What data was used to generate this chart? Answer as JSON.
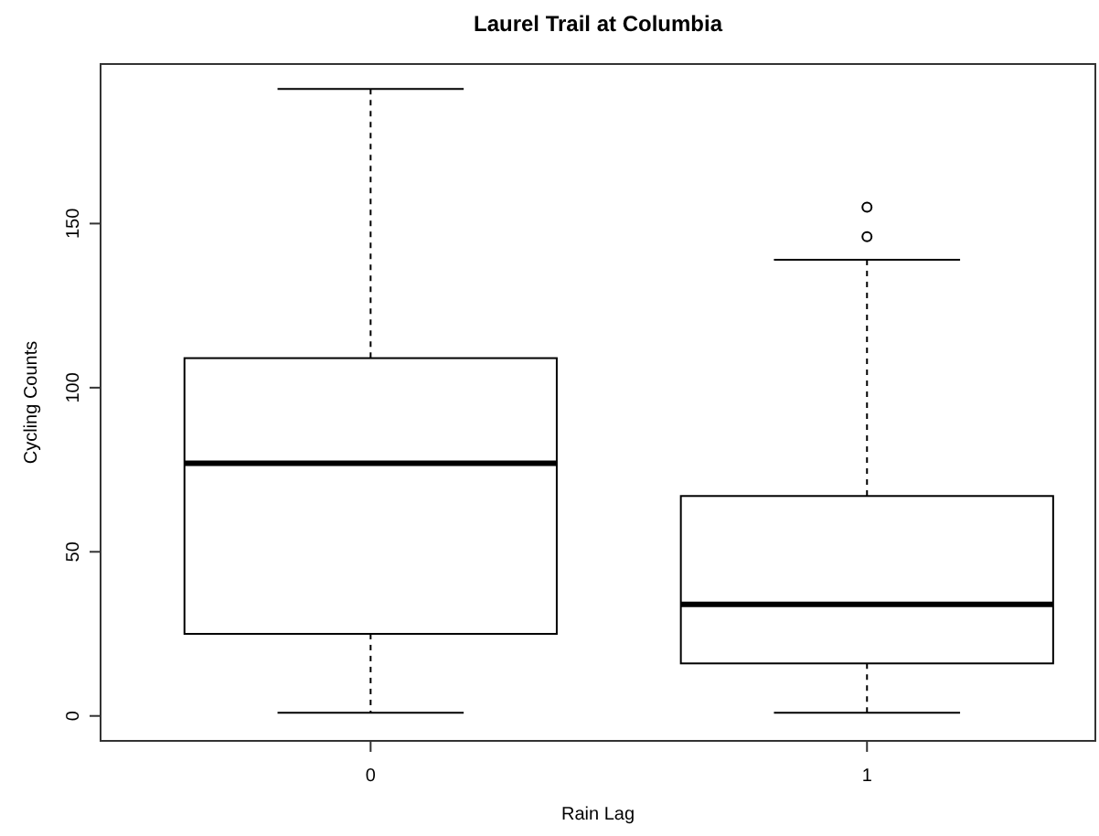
{
  "chart_data": {
    "type": "box",
    "title": "Laurel Trail at Columbia",
    "xlabel": "Rain Lag",
    "ylabel": "Cycling Counts",
    "categories": [
      "0",
      "1"
    ],
    "boxes": [
      {
        "low": 1,
        "q1": 25,
        "median": 77,
        "q3": 109,
        "high": 191
      },
      {
        "low": 1,
        "q1": 16,
        "median": 34,
        "q3": 67,
        "high": 139,
        "outliers": [
          146,
          155
        ]
      }
    ],
    "ylim": [
      -7.6,
      198.6
    ],
    "yticks": [
      0,
      50,
      100,
      150
    ],
    "grid": false
  }
}
